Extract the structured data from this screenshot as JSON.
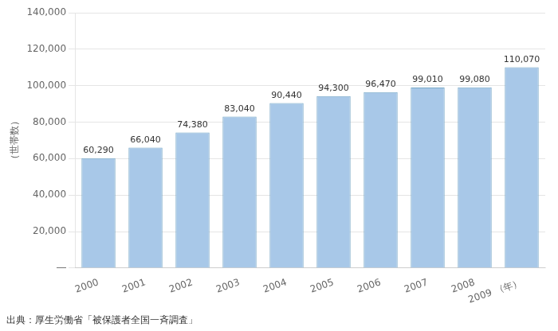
{
  "chart_data": {
    "type": "bar",
    "ylabel": "（世帯数）",
    "annotations": [
      "出典：厚生労働省「被保護者全国一斉調査」"
    ],
    "categories": [
      "2000",
      "2001",
      "2002",
      "2003",
      "2004",
      "2005",
      "2006",
      "2007",
      "2008",
      "2009 （年）"
    ],
    "values": [
      60290,
      66040,
      74380,
      83040,
      90440,
      94300,
      96470,
      99010,
      99080,
      110070
    ],
    "value_labels": [
      "60,290",
      "66,040",
      "74,380",
      "83,040",
      "90,440",
      "94,300",
      "96,470",
      "99,010",
      "99,080",
      "110,070"
    ],
    "data_labels": true,
    "color": "#a8c8e8",
    "ylim": [
      0,
      140000
    ],
    "yticks": [
      {
        "value": 0,
        "label": "―"
      },
      {
        "value": 20000,
        "label": "20,000"
      },
      {
        "value": 40000,
        "label": "40,000"
      },
      {
        "value": 60000,
        "label": "60,000"
      },
      {
        "value": 80000,
        "label": "80,000"
      },
      {
        "value": 100000,
        "label": "100,000"
      },
      {
        "value": 120000,
        "label": "120,000"
      },
      {
        "value": 140000,
        "label": "140,000"
      }
    ],
    "grid": true
  }
}
